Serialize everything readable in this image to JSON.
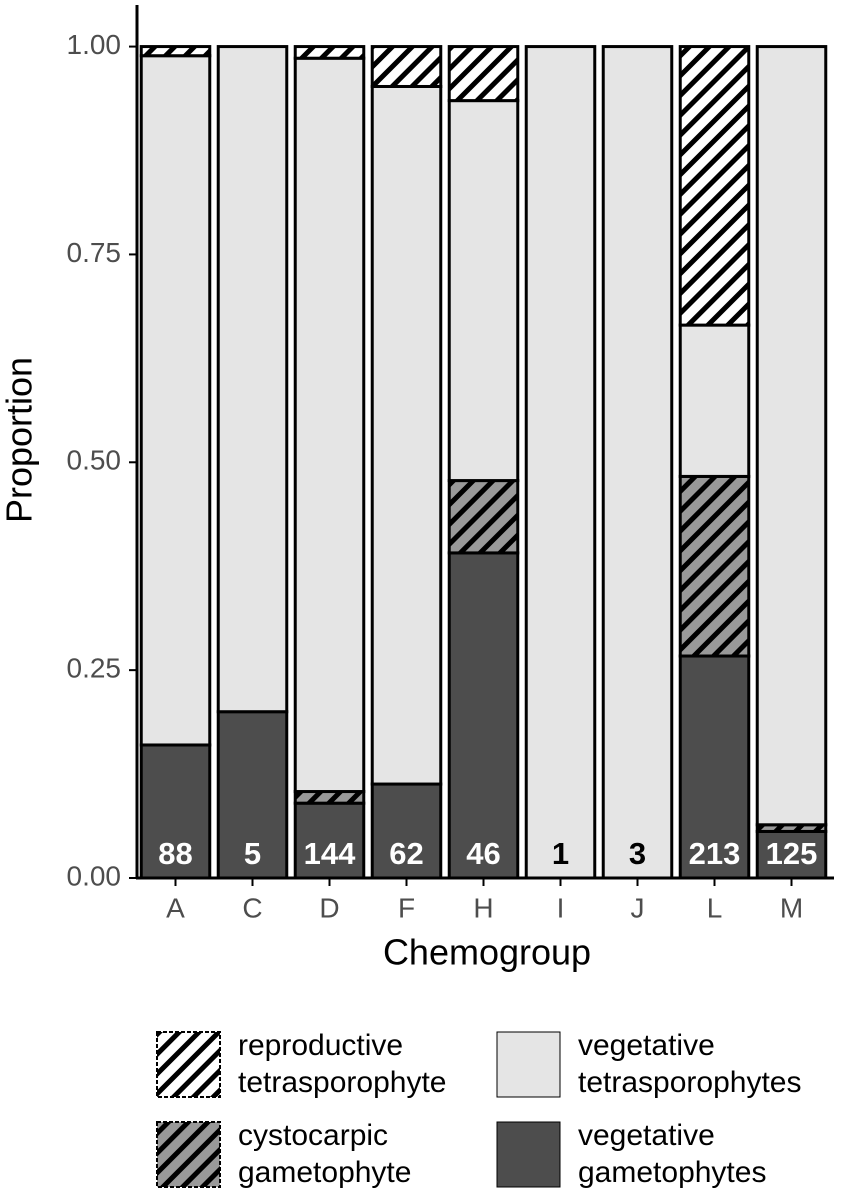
{
  "chart_data": {
    "type": "stacked_bar",
    "x_label": "Chemogroup",
    "y_label": "Proportion",
    "categories": [
      "A",
      "C",
      "D",
      "F",
      "H",
      "I",
      "J",
      "L",
      "M"
    ],
    "sample_sizes": [
      88,
      5,
      144,
      62,
      46,
      1,
      3,
      213,
      125
    ],
    "series": [
      {
        "name": "vegetative gametophytes",
        "color": "#4d4d4d",
        "hatch": false,
        "values": [
          0.16,
          0.2,
          0.09,
          0.113,
          0.391,
          0,
          0,
          0.267,
          0.056
        ]
      },
      {
        "name": "cystocarpic gametophyte",
        "color": "#999999",
        "hatch": true,
        "values": [
          0,
          0,
          0.014,
          0,
          0.087,
          0,
          0,
          0.216,
          0.008
        ]
      },
      {
        "name": "vegetative tetrasporophytes",
        "color": "#e5e5e5",
        "hatch": false,
        "values": [
          0.829,
          0.8,
          0.882,
          0.839,
          0.457,
          1,
          1,
          0.182,
          0.936
        ]
      },
      {
        "name": "reproductive tetrasporophyte",
        "color": "#ffffff",
        "hatch": true,
        "values": [
          0.011,
          0,
          0.014,
          0.048,
          0.065,
          0,
          0,
          0.335,
          0
        ]
      }
    ],
    "ylim": [
      0,
      1.05
    ],
    "yticks": [
      {
        "value": 0,
        "label": "0.00"
      },
      {
        "value": 0.25,
        "label": "0.25"
      },
      {
        "value": 0.5,
        "label": "0.50"
      },
      {
        "value": 0.75,
        "label": "0.75"
      },
      {
        "value": 1,
        "label": "1.00"
      }
    ]
  }
}
